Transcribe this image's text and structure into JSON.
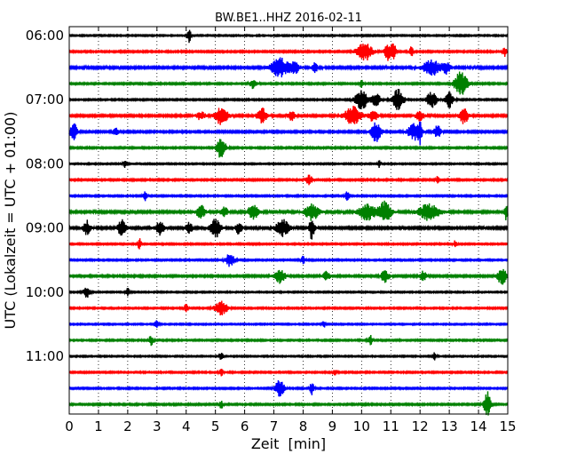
{
  "chart_data": {
    "type": "line",
    "title": "BW.BE1..HHZ 2016-02-11",
    "xlabel": "Zeit  [min]",
    "ylabel": "UTC (Lokalzeit = UTC + 01:00)",
    "xlim": [
      0,
      15
    ],
    "x_ticks": [
      0,
      1,
      2,
      3,
      4,
      5,
      6,
      7,
      8,
      9,
      10,
      11,
      12,
      13,
      14,
      15
    ],
    "x_tick_labels": [
      "0",
      "1",
      "2",
      "3",
      "4",
      "5",
      "6",
      "7",
      "8",
      "9",
      "10",
      "11",
      "12",
      "13",
      "14",
      "15"
    ],
    "grid": {
      "vertical": "dotted",
      "horizontal": false
    },
    "legend": "none",
    "trace_interval_min": 15,
    "y_tick_labels": [
      {
        "label": "06:00",
        "trace_index": 0
      },
      {
        "label": "07:00",
        "trace_index": 4
      },
      {
        "label": "08:00",
        "trace_index": 8
      },
      {
        "label": "09:00",
        "trace_index": 12
      },
      {
        "label": "10:00",
        "trace_index": 16
      },
      {
        "label": "11:00",
        "trace_index": 20
      }
    ],
    "color_cycle": [
      "#000000",
      "#ff0000",
      "#0000ff",
      "#008000"
    ],
    "traces": [
      {
        "start": "06:00",
        "color": "#000000",
        "noise": 0.18,
        "events": [
          [
            4.1,
            2.2,
            0.04
          ]
        ]
      },
      {
        "start": "06:15",
        "color": "#ff0000",
        "noise": 0.22,
        "events": [
          [
            10.1,
            2.5,
            0.18
          ],
          [
            10.9,
            2.4,
            0.08
          ],
          [
            11.1,
            2.2,
            0.06
          ],
          [
            11.7,
            1.3,
            0.05
          ],
          [
            14.9,
            1.2,
            0.05
          ]
        ]
      },
      {
        "start": "06:30",
        "color": "#0000ff",
        "noise": 0.28,
        "events": [
          [
            7.2,
            2.6,
            0.2
          ],
          [
            7.7,
            1.6,
            0.12
          ],
          [
            8.4,
            1.4,
            0.06
          ],
          [
            12.4,
            2.2,
            0.2
          ],
          [
            12.9,
            1.6,
            0.1
          ]
        ]
      },
      {
        "start": "06:45",
        "color": "#008000",
        "noise": 0.22,
        "events": [
          [
            6.3,
            1.3,
            0.08
          ],
          [
            13.4,
            3.4,
            0.15
          ],
          [
            10.0,
            1.0,
            0.05
          ]
        ]
      },
      {
        "start": "07:00",
        "color": "#000000",
        "noise": 0.2,
        "events": [
          [
            10.0,
            2.6,
            0.15
          ],
          [
            10.5,
            1.8,
            0.1
          ],
          [
            11.25,
            2.9,
            0.13
          ],
          [
            12.4,
            2.3,
            0.12
          ],
          [
            13.0,
            2.1,
            0.1
          ]
        ]
      },
      {
        "start": "07:15",
        "color": "#ff0000",
        "noise": 0.26,
        "events": [
          [
            4.5,
            1.2,
            0.1
          ],
          [
            5.2,
            2.5,
            0.15
          ],
          [
            6.6,
            2.0,
            0.12
          ],
          [
            7.6,
            1.4,
            0.08
          ],
          [
            9.7,
            2.4,
            0.2
          ],
          [
            10.4,
            1.6,
            0.1
          ],
          [
            12.0,
            1.4,
            0.1
          ],
          [
            13.5,
            2.2,
            0.1
          ]
        ]
      },
      {
        "start": "07:30",
        "color": "#0000ff",
        "noise": 0.25,
        "events": [
          [
            0.15,
            2.5,
            0.08
          ],
          [
            1.6,
            1.3,
            0.06
          ],
          [
            10.5,
            2.7,
            0.12
          ],
          [
            11.8,
            2.3,
            0.15
          ],
          [
            12.0,
            3.0,
            0.04
          ],
          [
            12.6,
            1.8,
            0.08
          ]
        ]
      },
      {
        "start": "07:45",
        "color": "#008000",
        "noise": 0.22,
        "events": [
          [
            5.2,
            3.0,
            0.1
          ]
        ]
      },
      {
        "start": "08:00",
        "color": "#000000",
        "noise": 0.18,
        "events": [
          [
            1.9,
            1.0,
            0.04
          ],
          [
            10.6,
            1.0,
            0.04
          ]
        ]
      },
      {
        "start": "08:15",
        "color": "#ff0000",
        "noise": 0.22,
        "events": [
          [
            8.2,
            1.3,
            0.08
          ],
          [
            12.6,
            1.0,
            0.04
          ]
        ]
      },
      {
        "start": "08:30",
        "color": "#0000ff",
        "noise": 0.2,
        "events": [
          [
            2.6,
            1.3,
            0.05
          ],
          [
            9.5,
            1.2,
            0.05
          ]
        ]
      },
      {
        "start": "08:45",
        "color": "#008000",
        "noise": 0.28,
        "events": [
          [
            4.5,
            1.8,
            0.1
          ],
          [
            5.3,
            1.6,
            0.08
          ],
          [
            6.3,
            2.2,
            0.12
          ],
          [
            8.3,
            2.4,
            0.15
          ],
          [
            10.2,
            2.2,
            0.2
          ],
          [
            10.8,
            2.8,
            0.15
          ],
          [
            12.3,
            2.2,
            0.25
          ],
          [
            14.95,
            2.3,
            0.05
          ]
        ]
      },
      {
        "start": "09:00",
        "color": "#000000",
        "noise": 0.28,
        "events": [
          [
            0.6,
            2.0,
            0.08
          ],
          [
            1.8,
            2.2,
            0.1
          ],
          [
            3.1,
            1.8,
            0.1
          ],
          [
            4.1,
            1.6,
            0.08
          ],
          [
            5.0,
            2.6,
            0.12
          ],
          [
            5.8,
            1.6,
            0.08
          ],
          [
            7.3,
            2.4,
            0.15
          ],
          [
            8.3,
            3.2,
            0.06
          ]
        ]
      },
      {
        "start": "09:15",
        "color": "#ff0000",
        "noise": 0.2,
        "events": [
          [
            2.4,
            1.7,
            0.04
          ],
          [
            13.2,
            1.0,
            0.04
          ]
        ]
      },
      {
        "start": "09:30",
        "color": "#0000ff",
        "noise": 0.2,
        "events": [
          [
            5.5,
            1.9,
            0.1
          ],
          [
            8.0,
            1.0,
            0.05
          ]
        ]
      },
      {
        "start": "09:45",
        "color": "#008000",
        "noise": 0.25,
        "events": [
          [
            7.2,
            2.1,
            0.12
          ],
          [
            8.8,
            1.3,
            0.08
          ],
          [
            10.8,
            1.6,
            0.1
          ],
          [
            12.1,
            1.3,
            0.08
          ],
          [
            14.8,
            2.4,
            0.1
          ]
        ]
      },
      {
        "start": "10:00",
        "color": "#000000",
        "noise": 0.18,
        "events": [
          [
            0.6,
            1.4,
            0.08
          ],
          [
            2.0,
            1.0,
            0.05
          ]
        ]
      },
      {
        "start": "10:15",
        "color": "#ff0000",
        "noise": 0.2,
        "events": [
          [
            5.2,
            1.9,
            0.15
          ],
          [
            4.0,
            1.0,
            0.05
          ]
        ]
      },
      {
        "start": "10:30",
        "color": "#0000ff",
        "noise": 0.18,
        "events": [
          [
            3.0,
            1.5,
            0.04
          ],
          [
            8.7,
            1.0,
            0.04
          ]
        ]
      },
      {
        "start": "10:45",
        "color": "#008000",
        "noise": 0.2,
        "events": [
          [
            2.8,
            1.4,
            0.05
          ],
          [
            10.3,
            1.4,
            0.05
          ]
        ]
      },
      {
        "start": "11:00",
        "color": "#000000",
        "noise": 0.18,
        "events": [
          [
            5.2,
            1.2,
            0.04
          ],
          [
            12.5,
            1.0,
            0.04
          ]
        ]
      },
      {
        "start": "11:15",
        "color": "#ff0000",
        "noise": 0.2,
        "events": [
          [
            5.2,
            1.3,
            0.04
          ],
          [
            9.1,
            1.0,
            0.04
          ]
        ]
      },
      {
        "start": "11:30",
        "color": "#0000ff",
        "noise": 0.2,
        "events": [
          [
            7.2,
            2.5,
            0.1
          ],
          [
            8.3,
            1.7,
            0.05
          ]
        ]
      },
      {
        "start": "11:45",
        "color": "#008000",
        "noise": 0.22,
        "events": [
          [
            5.2,
            1.2,
            0.04
          ],
          [
            14.3,
            3.4,
            0.08
          ]
        ]
      }
    ]
  }
}
